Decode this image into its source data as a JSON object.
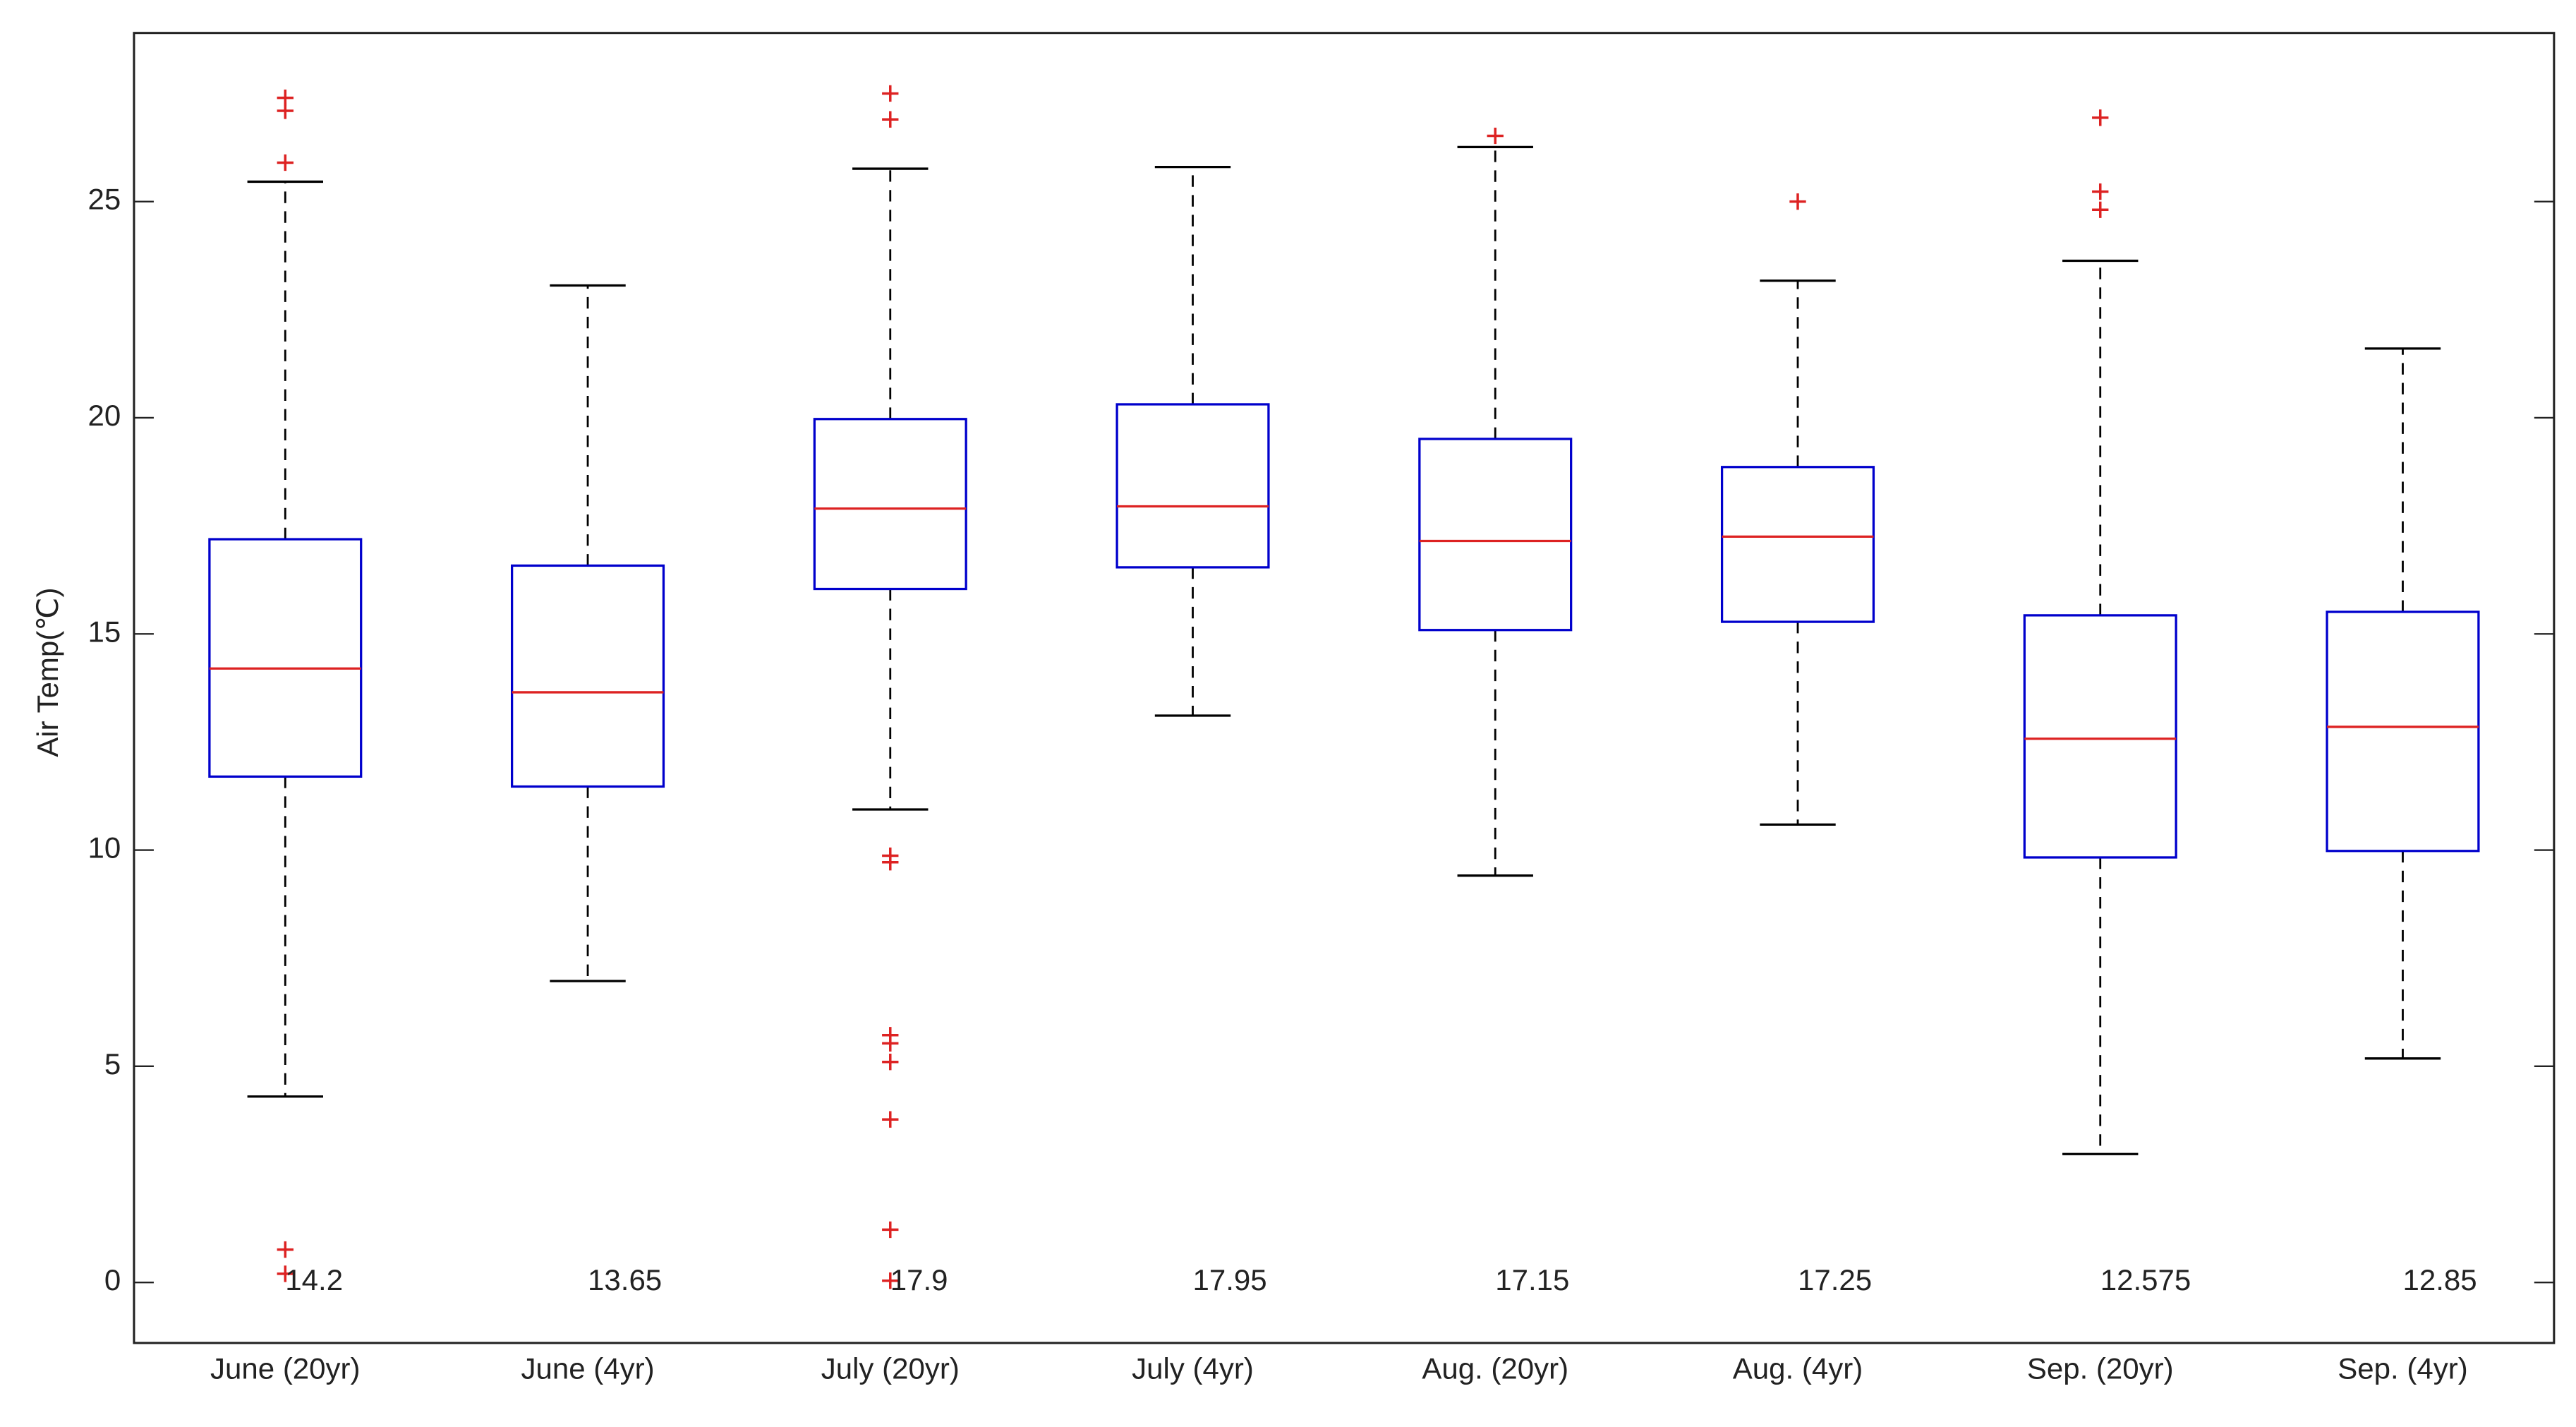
{
  "chart_data": {
    "type": "box",
    "y_label": "Air Temp(℃)",
    "categories": [
      "June (20yr)",
      "June (4yr)",
      "July (20yr)",
      "July (4yr)",
      "Aug. (20yr)",
      "Aug. (4yr)",
      "Sep. (20yr)",
      "Sep. (4yr)"
    ],
    "boxes": [
      {
        "whislo": 4.3,
        "q1": 11.7,
        "med": 14.2,
        "q3": 17.19,
        "whishi": 25.46,
        "fliers": [
          27.4,
          27.1,
          25.9,
          0.76,
          0.2
        ]
      },
      {
        "whislo": 6.97,
        "q1": 11.47,
        "med": 13.65,
        "q3": 16.58,
        "whishi": 23.06,
        "fliers": []
      },
      {
        "whislo": 10.94,
        "q1": 16.04,
        "med": 17.9,
        "q3": 19.97,
        "whishi": 25.76,
        "fliers": [
          27.5,
          26.9,
          9.87,
          9.72,
          5.72,
          5.53,
          5.1,
          3.77,
          1.22,
          0.04
        ]
      },
      {
        "whislo": 13.11,
        "q1": 16.54,
        "med": 17.95,
        "q3": 20.31,
        "whishi": 25.8,
        "fliers": []
      },
      {
        "whislo": 9.41,
        "q1": 15.09,
        "med": 17.15,
        "q3": 19.51,
        "whishi": 26.26,
        "fliers": [
          26.52
        ]
      },
      {
        "whislo": 10.59,
        "q1": 15.28,
        "med": 17.25,
        "q3": 18.86,
        "whishi": 23.17,
        "fliers": [
          25.0
        ]
      },
      {
        "whislo": 2.97,
        "q1": 9.83,
        "med": 12.575,
        "q3": 15.43,
        "whishi": 23.63,
        "fliers": [
          26.94,
          25.23,
          24.81
        ]
      },
      {
        "whislo": 5.18,
        "q1": 9.98,
        "med": 12.85,
        "q3": 15.51,
        "whishi": 21.6,
        "fliers": []
      }
    ],
    "box_color": "#0000cc",
    "median_color": "#dd2222",
    "whisker_color": "#000000",
    "flier_color": "#dd2222",
    "ylim": [
      -1.4,
      28.9
    ],
    "yticks": [
      0,
      5,
      10,
      15,
      20,
      25
    ]
  }
}
